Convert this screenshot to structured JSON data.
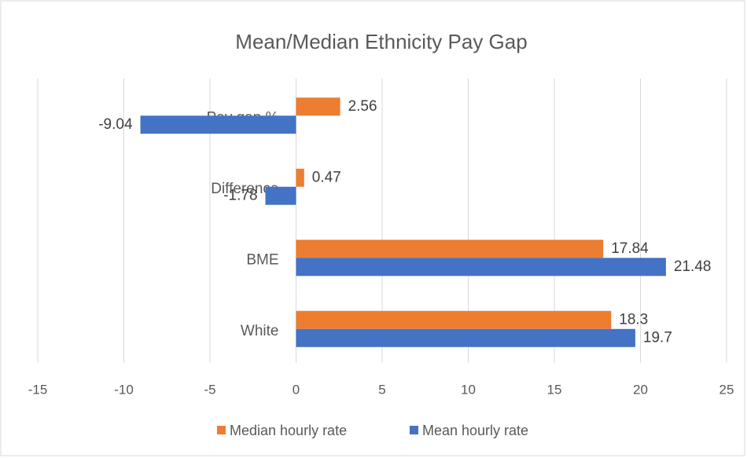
{
  "chart_data": {
    "type": "bar",
    "orientation": "horizontal",
    "title": "Mean/Median Ethnicity Pay Gap",
    "categories": [
      "Pay gap %",
      "Difference",
      "BME",
      "White"
    ],
    "series": [
      {
        "name": "Median hourly rate",
        "color": "#ed7d31",
        "values": [
          2.56,
          0.47,
          17.84,
          18.3
        ]
      },
      {
        "name": "Mean hourly rate",
        "color": "#4472c4",
        "values": [
          -9.04,
          -1.78,
          21.48,
          19.7
        ]
      }
    ],
    "xlim": [
      -15,
      25
    ],
    "xticks": [
      -15,
      -10,
      -5,
      0,
      5,
      10,
      15,
      20,
      25
    ],
    "grid": true,
    "legend": "bottom"
  }
}
